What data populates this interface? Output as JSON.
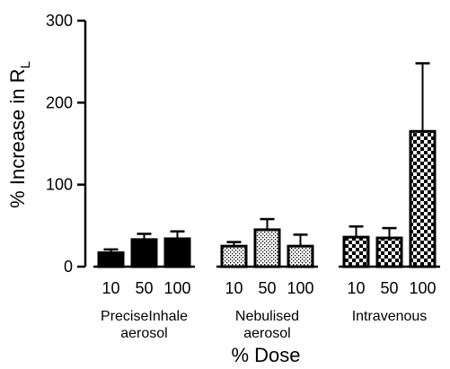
{
  "chart_data": {
    "type": "bar",
    "title": "",
    "ylabel_main": "% Increase in R",
    "ylabel_sub": "L",
    "xlabel": "% Dose",
    "ylim": [
      0,
      300
    ],
    "yticks": [
      "0",
      "100",
      "200",
      "300"
    ],
    "grid": false,
    "groups": [
      {
        "label_lines": [
          "PreciseInhale",
          "aerosol"
        ],
        "pattern": "solid",
        "bars": [
          {
            "dose": "10",
            "value": 17,
            "error": 4
          },
          {
            "dose": "50",
            "value": 33,
            "error": 7
          },
          {
            "dose": "100",
            "value": 34,
            "error": 9
          }
        ]
      },
      {
        "label_lines": [
          "Nebulised",
          "aerosol"
        ],
        "pattern": "dots",
        "bars": [
          {
            "dose": "10",
            "value": 25,
            "error": 5
          },
          {
            "dose": "50",
            "value": 45,
            "error": 13
          },
          {
            "dose": "100",
            "value": 25,
            "error": 14
          }
        ]
      },
      {
        "label_lines": [
          "Intravenous"
        ],
        "pattern": "checker",
        "bars": [
          {
            "dose": "10",
            "value": 36,
            "error": 13
          },
          {
            "dose": "50",
            "value": 35,
            "error": 12
          },
          {
            "dose": "100",
            "value": 165,
            "error": 83
          }
        ]
      }
    ]
  }
}
